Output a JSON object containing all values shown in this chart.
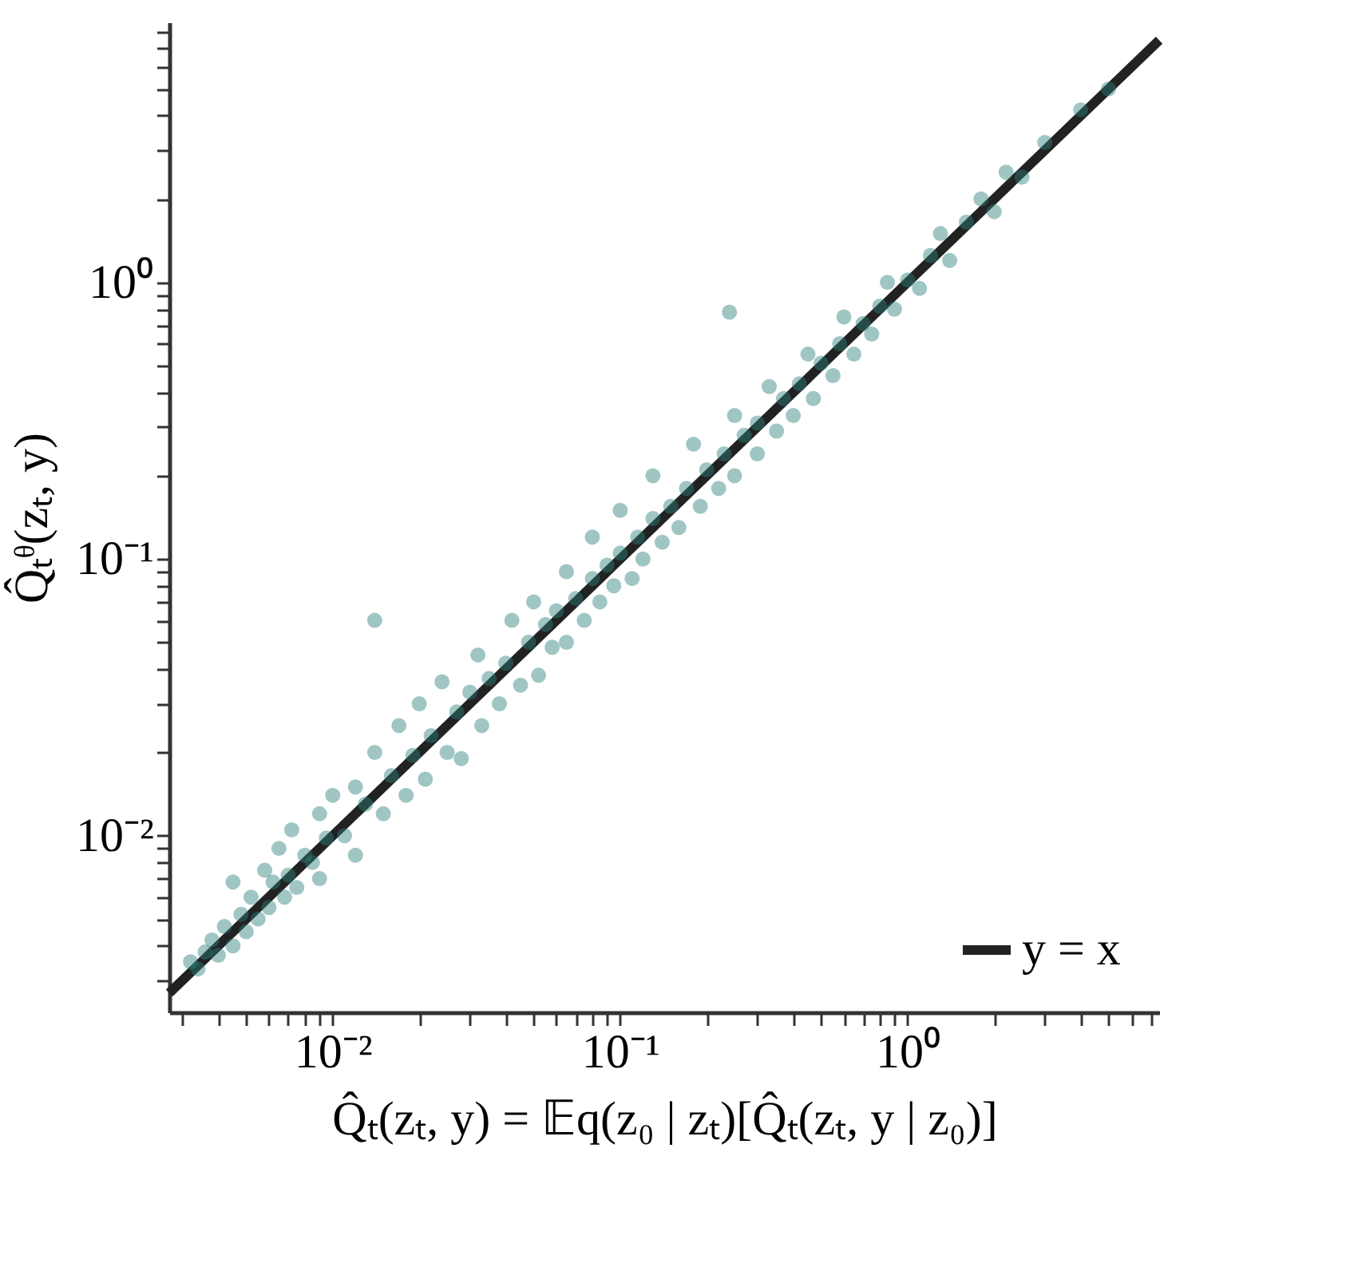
{
  "chart_data": {
    "type": "scatter",
    "xlabel": "Q̂ₜ(zₜ, y) = 𝔼q(z₀ | zₜ)[Q̂ₜ(zₜ, y | z₀)]",
    "ylabel": "Q̂ₜᶿ(zₜ, y)",
    "log": "xy",
    "grid": false,
    "legend": "bottom right",
    "xlim": [
      0.0027,
      7.5
    ],
    "ylim": [
      0.0023,
      8.7
    ],
    "xticks": [
      {
        "value": 0.003,
        "label": null
      },
      {
        "value": 0.004,
        "label": null
      },
      {
        "value": 0.005,
        "label": null
      },
      {
        "value": 0.006,
        "label": null
      },
      {
        "value": 0.007,
        "label": null
      },
      {
        "value": 0.008,
        "label": null
      },
      {
        "value": 0.009,
        "label": null
      },
      {
        "value": 0.01,
        "label": "10⁻²"
      },
      {
        "value": 0.02,
        "label": null
      },
      {
        "value": 0.03,
        "label": null
      },
      {
        "value": 0.04,
        "label": null
      },
      {
        "value": 0.05,
        "label": null
      },
      {
        "value": 0.06,
        "label": null
      },
      {
        "value": 0.07,
        "label": null
      },
      {
        "value": 0.08,
        "label": null
      },
      {
        "value": 0.09,
        "label": null
      },
      {
        "value": 0.1,
        "label": "10⁻¹"
      },
      {
        "value": 0.2,
        "label": null
      },
      {
        "value": 0.3,
        "label": null
      },
      {
        "value": 0.4,
        "label": null
      },
      {
        "value": 0.5,
        "label": null
      },
      {
        "value": 0.6,
        "label": null
      },
      {
        "value": 0.7,
        "label": null
      },
      {
        "value": 0.8,
        "label": null
      },
      {
        "value": 0.9,
        "label": null
      },
      {
        "value": 1,
        "label": "10⁰"
      },
      {
        "value": 2,
        "label": null
      },
      {
        "value": 3,
        "label": null
      },
      {
        "value": 4,
        "label": null
      },
      {
        "value": 5,
        "label": null
      },
      {
        "value": 6,
        "label": null
      },
      {
        "value": 7,
        "label": null
      }
    ],
    "yticks": [
      {
        "value": 0.003,
        "label": null
      },
      {
        "value": 0.004,
        "label": null
      },
      {
        "value": 0.005,
        "label": null
      },
      {
        "value": 0.006,
        "label": null
      },
      {
        "value": 0.007,
        "label": null
      },
      {
        "value": 0.008,
        "label": null
      },
      {
        "value": 0.009,
        "label": null
      },
      {
        "value": 0.01,
        "label": "10⁻²"
      },
      {
        "value": 0.02,
        "label": null
      },
      {
        "value": 0.03,
        "label": null
      },
      {
        "value": 0.04,
        "label": null
      },
      {
        "value": 0.05,
        "label": null
      },
      {
        "value": 0.06,
        "label": null
      },
      {
        "value": 0.07,
        "label": null
      },
      {
        "value": 0.08,
        "label": null
      },
      {
        "value": 0.09,
        "label": null
      },
      {
        "value": 0.1,
        "label": "10⁻¹"
      },
      {
        "value": 0.2,
        "label": null
      },
      {
        "value": 0.3,
        "label": null
      },
      {
        "value": 0.4,
        "label": null
      },
      {
        "value": 0.5,
        "label": null
      },
      {
        "value": 0.6,
        "label": null
      },
      {
        "value": 0.7,
        "label": null
      },
      {
        "value": 0.8,
        "label": null
      },
      {
        "value": 0.9,
        "label": null
      },
      {
        "value": 1,
        "label": "10⁰"
      },
      {
        "value": 2,
        "label": null
      },
      {
        "value": 3,
        "label": null
      },
      {
        "value": 4,
        "label": null
      },
      {
        "value": 5,
        "label": null
      },
      {
        "value": 6,
        "label": null
      },
      {
        "value": 7,
        "label": null
      },
      {
        "value": 8,
        "label": null
      }
    ],
    "series": [
      {
        "marker": "circle",
        "color": "#2b8079",
        "x": [
          0.0032,
          0.0034,
          0.0036,
          0.0038,
          0.004,
          0.0042,
          0.0045,
          0.0045,
          0.0048,
          0.005,
          0.0052,
          0.0055,
          0.0058,
          0.006,
          0.0062,
          0.0065,
          0.0068,
          0.007,
          0.0072,
          0.0075,
          0.008,
          0.0085,
          0.009,
          0.009,
          0.0095,
          0.01,
          0.011,
          0.012,
          0.012,
          0.013,
          0.014,
          0.015,
          0.016,
          0.017,
          0.018,
          0.019,
          0.02,
          0.021,
          0.022,
          0.024,
          0.025,
          0.027,
          0.028,
          0.03,
          0.032,
          0.033,
          0.035,
          0.038,
          0.04,
          0.042,
          0.045,
          0.048,
          0.05,
          0.052,
          0.055,
          0.058,
          0.06,
          0.065,
          0.065,
          0.07,
          0.075,
          0.08,
          0.08,
          0.085,
          0.09,
          0.095,
          0.1,
          0.1,
          0.11,
          0.115,
          0.12,
          0.13,
          0.13,
          0.14,
          0.15,
          0.16,
          0.17,
          0.18,
          0.19,
          0.2,
          0.22,
          0.23,
          0.25,
          0.25,
          0.27,
          0.3,
          0.3,
          0.33,
          0.35,
          0.37,
          0.4,
          0.42,
          0.45,
          0.47,
          0.5,
          0.55,
          0.58,
          0.6,
          0.65,
          0.7,
          0.75,
          0.8,
          0.85,
          0.9,
          1.0,
          1.1,
          1.2,
          1.3,
          1.4,
          1.6,
          1.8,
          2.0,
          2.2,
          2.5,
          3.0,
          4.0,
          5.0,
          0.24,
          0.014
        ],
        "values": [
          0.0035,
          0.0033,
          0.0038,
          0.0042,
          0.0037,
          0.0047,
          0.004,
          0.0068,
          0.0052,
          0.0045,
          0.006,
          0.005,
          0.0075,
          0.0055,
          0.0068,
          0.009,
          0.006,
          0.0072,
          0.0105,
          0.0065,
          0.0085,
          0.008,
          0.012,
          0.007,
          0.0098,
          0.014,
          0.01,
          0.015,
          0.0085,
          0.013,
          0.02,
          0.012,
          0.0165,
          0.025,
          0.014,
          0.0195,
          0.03,
          0.016,
          0.023,
          0.036,
          0.02,
          0.028,
          0.019,
          0.033,
          0.045,
          0.025,
          0.037,
          0.03,
          0.042,
          0.06,
          0.035,
          0.05,
          0.07,
          0.038,
          0.058,
          0.048,
          0.065,
          0.09,
          0.05,
          0.072,
          0.06,
          0.085,
          0.12,
          0.07,
          0.095,
          0.08,
          0.105,
          0.15,
          0.085,
          0.12,
          0.1,
          0.14,
          0.2,
          0.115,
          0.155,
          0.13,
          0.18,
          0.26,
          0.155,
          0.21,
          0.18,
          0.24,
          0.2,
          0.33,
          0.28,
          0.24,
          0.31,
          0.42,
          0.29,
          0.38,
          0.33,
          0.43,
          0.55,
          0.38,
          0.51,
          0.46,
          0.6,
          0.75,
          0.55,
          0.71,
          0.65,
          0.82,
          1.0,
          0.8,
          1.02,
          0.95,
          1.25,
          1.5,
          1.2,
          1.65,
          2.0,
          1.8,
          2.5,
          2.4,
          3.2,
          4.2,
          5.0,
          0.78,
          0.06
        ]
      },
      {
        "type": "line",
        "name": "y = x",
        "color": "#222222",
        "line_style": "solid",
        "x": [
          0.0027,
          7.5
        ],
        "values": [
          0.0027,
          7.5
        ]
      }
    ]
  }
}
